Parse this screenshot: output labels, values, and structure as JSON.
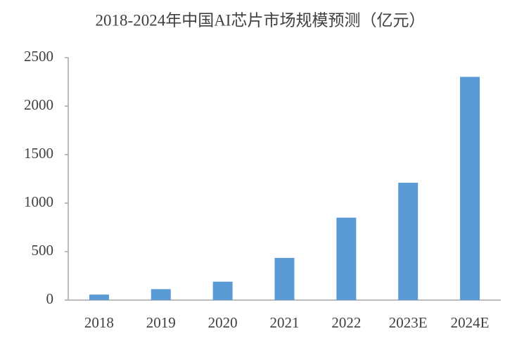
{
  "chart_data": {
    "type": "bar",
    "title": "2018-2024年中国AI芯片市场规模预测（亿元）",
    "categories": [
      "2018",
      "2019",
      "2020",
      "2021",
      "2022",
      "2023E",
      "2024E"
    ],
    "values": [
      57,
      113,
      190,
      435,
      850,
      1210,
      2302
    ],
    "color": "#5b9bd5",
    "ylim": [
      0,
      2500
    ],
    "yticks": [
      0,
      500,
      1000,
      1500,
      2000,
      2500
    ],
    "grid": false
  }
}
